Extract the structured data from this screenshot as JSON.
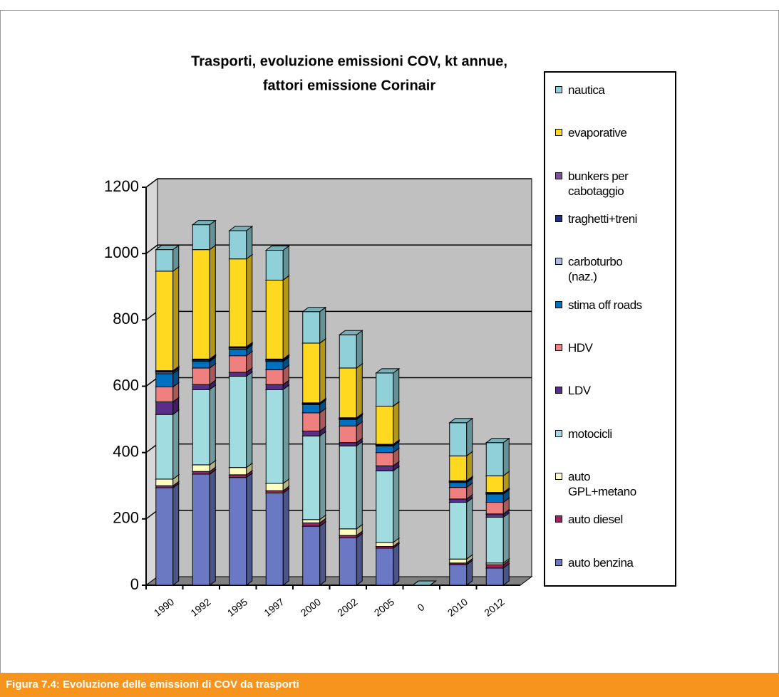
{
  "chart_data": {
    "type": "bar",
    "stacked": true,
    "title": [
      "Trasporti, evoluzione emissioni COV, kt annue,",
      "fattori emissione Corinair"
    ],
    "caption": "Figura 7.4: Evoluzione delle emissioni di COV da trasporti",
    "categories": [
      "1990",
      "1992",
      "1995",
      "1997",
      "2000",
      "2002",
      "2005",
      "0",
      "2010",
      "2012"
    ],
    "ylim": [
      0,
      1200
    ],
    "yticks": [
      0,
      200,
      400,
      600,
      800,
      1000,
      1200
    ],
    "grid": true,
    "legend": "right",
    "series": [
      {
        "name": "auto benzina",
        "color": "#6b78c4",
        "values": [
          294,
          335,
          325,
          278,
          178,
          143,
          112,
          0,
          62,
          52
        ]
      },
      {
        "name": "auto diesel",
        "color": "#a02060",
        "values": [
          6,
          8,
          8,
          7,
          10,
          7,
          5,
          0,
          5,
          10
        ]
      },
      {
        "name": "auto GPL+metano",
        "color": "#ffffc0",
        "values": [
          20,
          20,
          22,
          22,
          10,
          20,
          12,
          0,
          12,
          5
        ]
      },
      {
        "name": "motocicli",
        "color": "#a0dce0",
        "values": [
          195,
          227,
          275,
          283,
          252,
          250,
          216,
          0,
          171,
          138
        ]
      },
      {
        "name": "LDV",
        "color": "#5a2d8a",
        "values": [
          38,
          15,
          12,
          15,
          15,
          10,
          15,
          0,
          10,
          10
        ]
      },
      {
        "name": "HDV",
        "color": "#f08080",
        "values": [
          45,
          50,
          50,
          45,
          55,
          50,
          40,
          0,
          35,
          35
        ]
      },
      {
        "name": "stima off roads",
        "color": "#0070c0",
        "values": [
          40,
          20,
          20,
          25,
          25,
          20,
          20,
          0,
          15,
          25
        ]
      },
      {
        "name": "carboturbo (naz.)",
        "color": "#b0b8e8",
        "values": [
          4,
          3,
          3,
          3,
          2,
          2,
          2,
          0,
          2,
          2
        ]
      },
      {
        "name": "traghetti+treni",
        "color": "#203080",
        "values": [
          3,
          2,
          2,
          2,
          2,
          2,
          2,
          0,
          2,
          2
        ]
      },
      {
        "name": "bunkers per cabotaggio",
        "color": "#8050a0",
        "values": [
          2,
          2,
          2,
          2,
          1,
          1,
          1,
          0,
          1,
          1
        ]
      },
      {
        "name": "evaporative",
        "color": "#ffd820",
        "values": [
          300,
          330,
          265,
          238,
          180,
          150,
          115,
          0,
          75,
          50
        ]
      },
      {
        "name": "nautica",
        "color": "#90d0d8",
        "values": [
          65,
          75,
          85,
          90,
          95,
          100,
          100,
          0,
          100,
          100
        ]
      }
    ]
  }
}
